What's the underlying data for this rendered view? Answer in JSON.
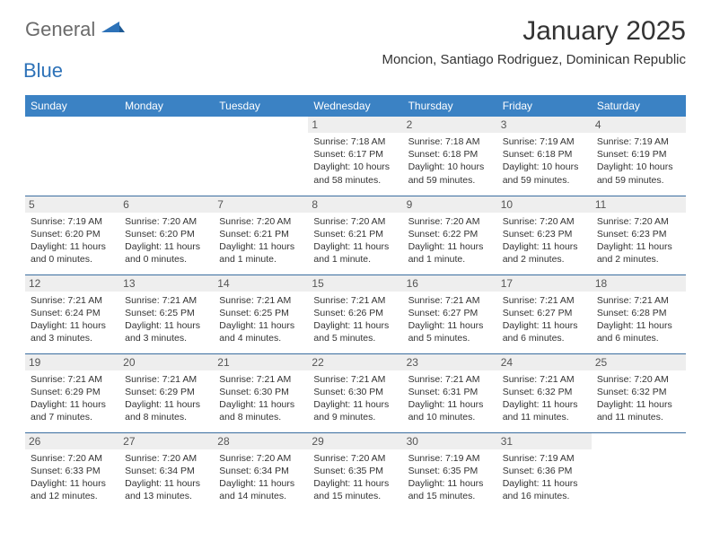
{
  "brand": {
    "word1": "General",
    "word2": "Blue",
    "accent_color": "#2d72b8"
  },
  "title": "January 2025",
  "location": "Moncion, Santiago Rodriguez, Dominican Republic",
  "colors": {
    "header_bg": "#3b82c4",
    "header_fg": "#ffffff",
    "daynum_bg": "#eeeeee",
    "row_border": "#3b6ea0"
  },
  "dayHeaders": [
    "Sunday",
    "Monday",
    "Tuesday",
    "Wednesday",
    "Thursday",
    "Friday",
    "Saturday"
  ],
  "weeks": [
    [
      null,
      null,
      null,
      {
        "n": "1",
        "sr": "7:18 AM",
        "ss": "6:17 PM",
        "dl": "10 hours and 58 minutes."
      },
      {
        "n": "2",
        "sr": "7:18 AM",
        "ss": "6:18 PM",
        "dl": "10 hours and 59 minutes."
      },
      {
        "n": "3",
        "sr": "7:19 AM",
        "ss": "6:18 PM",
        "dl": "10 hours and 59 minutes."
      },
      {
        "n": "4",
        "sr": "7:19 AM",
        "ss": "6:19 PM",
        "dl": "10 hours and 59 minutes."
      }
    ],
    [
      {
        "n": "5",
        "sr": "7:19 AM",
        "ss": "6:20 PM",
        "dl": "11 hours and 0 minutes."
      },
      {
        "n": "6",
        "sr": "7:20 AM",
        "ss": "6:20 PM",
        "dl": "11 hours and 0 minutes."
      },
      {
        "n": "7",
        "sr": "7:20 AM",
        "ss": "6:21 PM",
        "dl": "11 hours and 1 minute."
      },
      {
        "n": "8",
        "sr": "7:20 AM",
        "ss": "6:21 PM",
        "dl": "11 hours and 1 minute."
      },
      {
        "n": "9",
        "sr": "7:20 AM",
        "ss": "6:22 PM",
        "dl": "11 hours and 1 minute."
      },
      {
        "n": "10",
        "sr": "7:20 AM",
        "ss": "6:23 PM",
        "dl": "11 hours and 2 minutes."
      },
      {
        "n": "11",
        "sr": "7:20 AM",
        "ss": "6:23 PM",
        "dl": "11 hours and 2 minutes."
      }
    ],
    [
      {
        "n": "12",
        "sr": "7:21 AM",
        "ss": "6:24 PM",
        "dl": "11 hours and 3 minutes."
      },
      {
        "n": "13",
        "sr": "7:21 AM",
        "ss": "6:25 PM",
        "dl": "11 hours and 3 minutes."
      },
      {
        "n": "14",
        "sr": "7:21 AM",
        "ss": "6:25 PM",
        "dl": "11 hours and 4 minutes."
      },
      {
        "n": "15",
        "sr": "7:21 AM",
        "ss": "6:26 PM",
        "dl": "11 hours and 5 minutes."
      },
      {
        "n": "16",
        "sr": "7:21 AM",
        "ss": "6:27 PM",
        "dl": "11 hours and 5 minutes."
      },
      {
        "n": "17",
        "sr": "7:21 AM",
        "ss": "6:27 PM",
        "dl": "11 hours and 6 minutes."
      },
      {
        "n": "18",
        "sr": "7:21 AM",
        "ss": "6:28 PM",
        "dl": "11 hours and 6 minutes."
      }
    ],
    [
      {
        "n": "19",
        "sr": "7:21 AM",
        "ss": "6:29 PM",
        "dl": "11 hours and 7 minutes."
      },
      {
        "n": "20",
        "sr": "7:21 AM",
        "ss": "6:29 PM",
        "dl": "11 hours and 8 minutes."
      },
      {
        "n": "21",
        "sr": "7:21 AM",
        "ss": "6:30 PM",
        "dl": "11 hours and 8 minutes."
      },
      {
        "n": "22",
        "sr": "7:21 AM",
        "ss": "6:30 PM",
        "dl": "11 hours and 9 minutes."
      },
      {
        "n": "23",
        "sr": "7:21 AM",
        "ss": "6:31 PM",
        "dl": "11 hours and 10 minutes."
      },
      {
        "n": "24",
        "sr": "7:21 AM",
        "ss": "6:32 PM",
        "dl": "11 hours and 11 minutes."
      },
      {
        "n": "25",
        "sr": "7:20 AM",
        "ss": "6:32 PM",
        "dl": "11 hours and 11 minutes."
      }
    ],
    [
      {
        "n": "26",
        "sr": "7:20 AM",
        "ss": "6:33 PM",
        "dl": "11 hours and 12 minutes."
      },
      {
        "n": "27",
        "sr": "7:20 AM",
        "ss": "6:34 PM",
        "dl": "11 hours and 13 minutes."
      },
      {
        "n": "28",
        "sr": "7:20 AM",
        "ss": "6:34 PM",
        "dl": "11 hours and 14 minutes."
      },
      {
        "n": "29",
        "sr": "7:20 AM",
        "ss": "6:35 PM",
        "dl": "11 hours and 15 minutes."
      },
      {
        "n": "30",
        "sr": "7:19 AM",
        "ss": "6:35 PM",
        "dl": "11 hours and 15 minutes."
      },
      {
        "n": "31",
        "sr": "7:19 AM",
        "ss": "6:36 PM",
        "dl": "11 hours and 16 minutes."
      },
      null
    ]
  ],
  "labels": {
    "sunrise": "Sunrise:",
    "sunset": "Sunset:",
    "daylight": "Daylight:"
  }
}
